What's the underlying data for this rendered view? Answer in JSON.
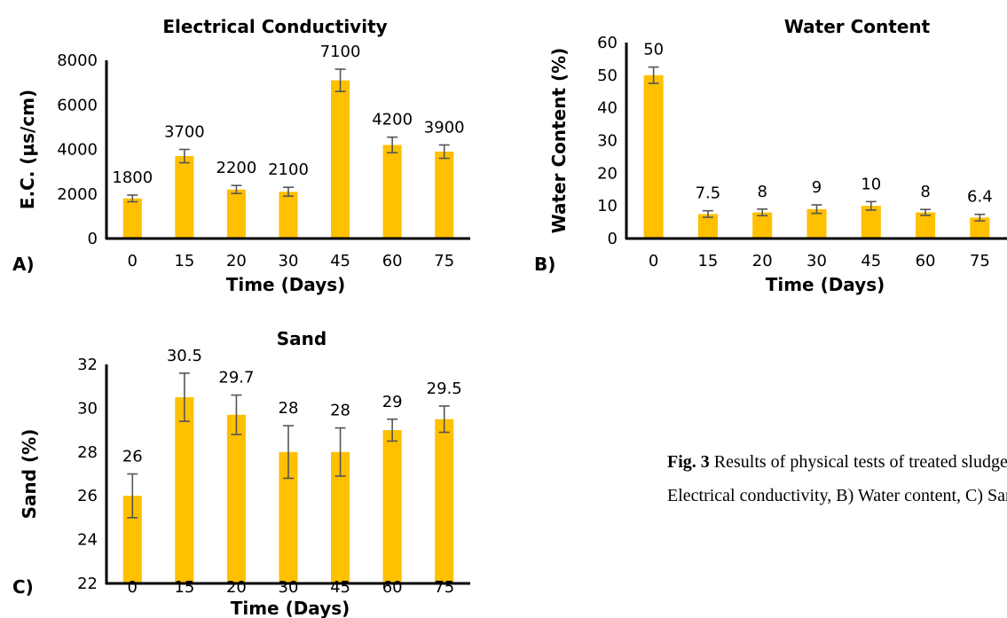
{
  "chart_data": [
    {
      "type": "bar",
      "panel_label": "A)",
      "title": "Electrical Conductivity",
      "xlabel": "Time (Days)",
      "ylabel": "E.C. (µs/cm)",
      "categories": [
        "0",
        "15",
        "20",
        "30",
        "45",
        "60",
        "75"
      ],
      "values": [
        1800,
        3700,
        2200,
        2100,
        7100,
        4200,
        3900
      ],
      "value_labels": [
        "1800",
        "3700",
        "2200",
        "2100",
        "7100",
        "4200",
        "3900"
      ],
      "error": [
        150,
        300,
        180,
        200,
        500,
        350,
        300
      ],
      "ylim": [
        0,
        8000
      ],
      "yticks": [
        "0",
        "2000",
        "4000",
        "6000",
        "8000"
      ],
      "grid": false,
      "color": "#FFC000"
    },
    {
      "type": "bar",
      "panel_label": "B)",
      "title": "Water Content",
      "xlabel": "Time (Days)",
      "ylabel": "Water Content (%)",
      "categories": [
        "0",
        "15",
        "20",
        "30",
        "45",
        "60",
        "75"
      ],
      "values": [
        50,
        7.5,
        8,
        9,
        10,
        8,
        6.4
      ],
      "value_labels": [
        "50",
        "7.5",
        "8",
        "9",
        "10",
        "8",
        "6.4"
      ],
      "error": [
        2.5,
        1,
        1,
        1.3,
        1.3,
        0.9,
        1
      ],
      "ylim": [
        0,
        60
      ],
      "yticks": [
        "0",
        "10",
        "20",
        "30",
        "40",
        "50",
        "60"
      ],
      "grid": false,
      "color": "#FFC000"
    },
    {
      "type": "bar",
      "panel_label": "C)",
      "title": "Sand",
      "xlabel": "Time (Days)",
      "ylabel": "Sand (%)",
      "categories": [
        "0",
        "15",
        "20",
        "30",
        "45",
        "60",
        "75"
      ],
      "values": [
        26,
        30.5,
        29.7,
        28,
        28,
        29,
        29.5
      ],
      "value_labels": [
        "26",
        "30.5",
        "29.7",
        "28",
        "28",
        "29",
        "29.5"
      ],
      "error": [
        1,
        1.1,
        0.9,
        1.2,
        1.1,
        0.5,
        0.6
      ],
      "ylim": [
        22,
        32
      ],
      "yticks": [
        "22",
        "24",
        "26",
        "28",
        "30",
        "32"
      ],
      "grid": false,
      "color": "#FFC000"
    }
  ],
  "caption": {
    "label": "Fig. 3",
    "line1": " Results of physical tests of treated sludge. A)",
    "line2": "Electrical conductivity, B) Water content, C) Sand"
  }
}
